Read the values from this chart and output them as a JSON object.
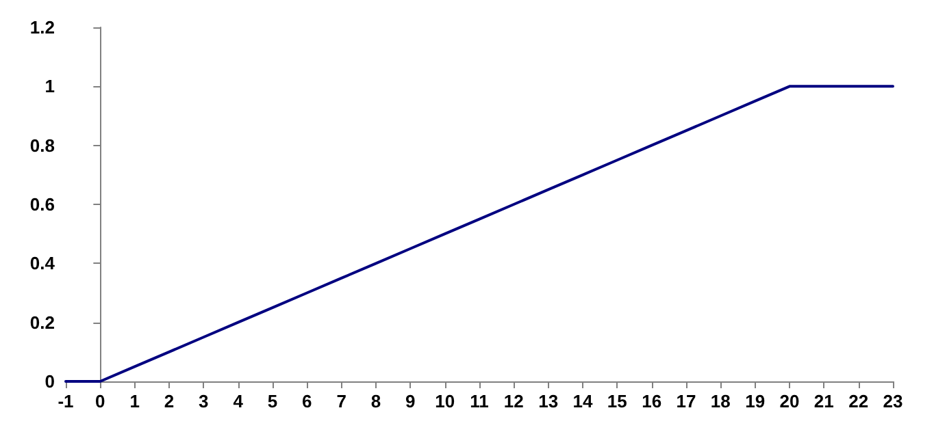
{
  "chart_data": {
    "type": "line",
    "x": [
      -1,
      0,
      1,
      2,
      3,
      4,
      5,
      6,
      7,
      8,
      9,
      10,
      11,
      12,
      13,
      14,
      15,
      16,
      17,
      18,
      19,
      20,
      21,
      22,
      23
    ],
    "series": [
      {
        "color": "#000080",
        "values": [
          0,
          0,
          0.05,
          0.1,
          0.15,
          0.2,
          0.25,
          0.3,
          0.35,
          0.4,
          0.45,
          0.5,
          0.55,
          0.6,
          0.65,
          0.7,
          0.75,
          0.8,
          0.85,
          0.9,
          0.95,
          1,
          1,
          1,
          1
        ]
      }
    ],
    "xlim": [
      -1,
      23
    ],
    "xticks": [
      -1,
      0,
      1,
      2,
      3,
      4,
      5,
      6,
      7,
      8,
      9,
      10,
      11,
      12,
      13,
      14,
      15,
      16,
      17,
      18,
      19,
      20,
      21,
      22,
      23
    ],
    "ylim": [
      0,
      1.2
    ],
    "yticks": [
      0,
      0.2,
      0.4,
      0.6,
      0.8,
      1,
      1.2
    ],
    "grid": false,
    "marker": "none",
    "line_style": "solid"
  }
}
